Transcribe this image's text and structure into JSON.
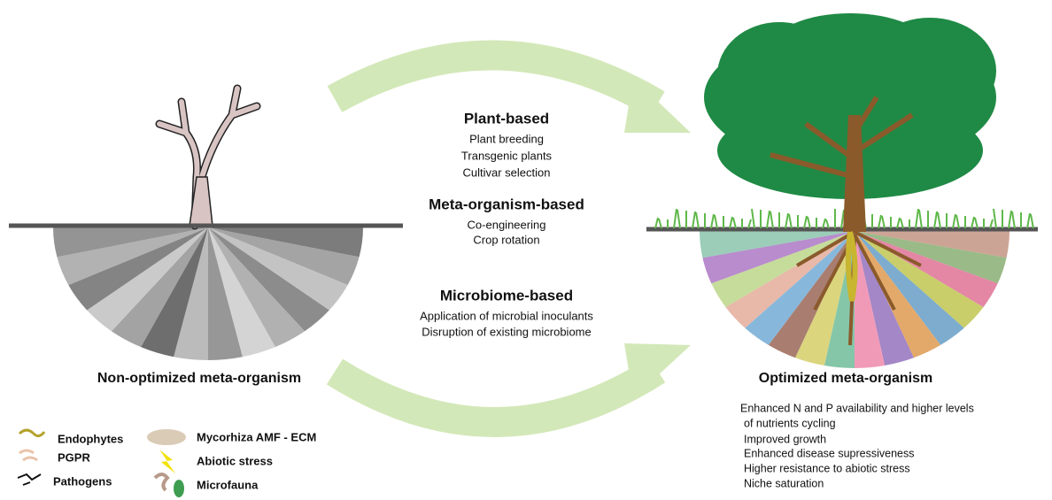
{
  "strategies": [
    {
      "title": "Plant-based",
      "items": [
        "Plant breeding",
        "Transgenic plants",
        "Cultivar selection"
      ]
    },
    {
      "title": "Meta-organism-based",
      "items": [
        "Co-engineering",
        "Crop rotation"
      ]
    },
    {
      "title": "Microbiome-based",
      "items": [
        "Application of microbial inoculants",
        "Disruption of existing microbiome"
      ]
    }
  ],
  "left": {
    "label": "Non-optimized meta-organism"
  },
  "right": {
    "label": "Optimized meta-organism",
    "outcomes": [
      "Enhanced N and P availability and higher levels",
      "of nutrients cycling",
      "Improved growth",
      "Enhanced disease supressiveness",
      "Higher resistance to abiotic stress",
      "Niche saturation"
    ]
  },
  "legend": [
    "Endophytes",
    "PGPR",
    "Pathogens",
    "Mycorhiza AMF - ECM",
    "Abiotic stress",
    "Microfauna"
  ]
}
